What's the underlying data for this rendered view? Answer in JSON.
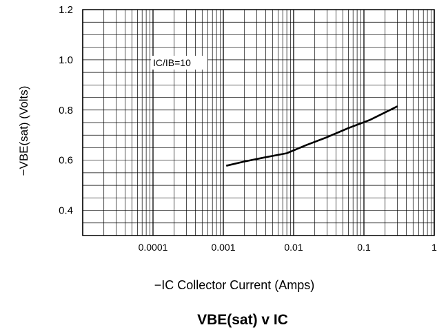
{
  "chart_data": {
    "type": "line",
    "title": "VBE(sat) v IC",
    "xlabel": "−IC  Collector Current (Amps)",
    "ylabel": "−VBE(sat)  (Volts)",
    "x_scale": "log",
    "xlim": [
      1e-05,
      1
    ],
    "ylim": [
      0.3,
      1.2
    ],
    "x_ticks": [
      0.0001,
      0.001,
      0.01,
      0.1,
      1
    ],
    "x_tick_labels": [
      "0.0001",
      "0.001",
      "0.01",
      "0.1",
      "1"
    ],
    "y_ticks": [
      0.4,
      0.6,
      0.8,
      1.0,
      1.2
    ],
    "y_tick_labels": [
      "0.4",
      "0.6",
      "0.8",
      "1.0",
      "1.2"
    ],
    "grid": true,
    "annotations": [
      {
        "text": "IC/IB=10"
      }
    ],
    "series": [
      {
        "color": "#000000",
        "x": [
          0.0011,
          0.002,
          0.004,
          0.008,
          0.015,
          0.03,
          0.06,
          0.12,
          0.3
        ],
        "y": [
          0.578,
          0.595,
          0.612,
          0.628,
          0.66,
          0.692,
          0.728,
          0.76,
          0.815
        ]
      }
    ]
  }
}
